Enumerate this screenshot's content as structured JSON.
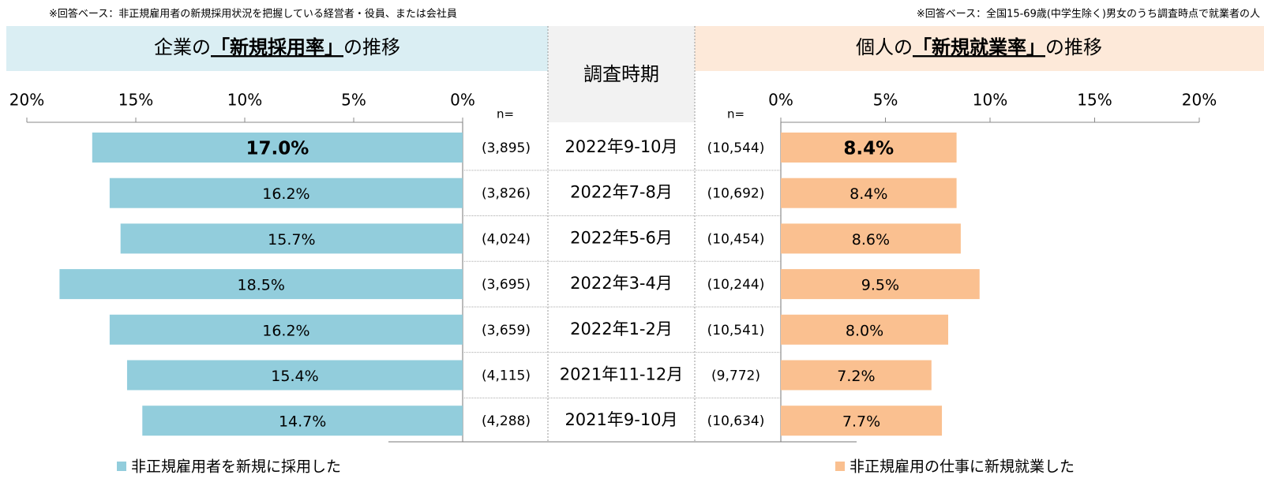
{
  "chart_data": {
    "type": "butterfly",
    "left_note": "※回答ベース：非正規雇用者の新規採用状況を把握している経営者・役員、または会社員",
    "right_note": "※回答ベース：全国15-69歳(中学生除く)男女のうち調査時点で就業者の人",
    "left_title": [
      "企業の",
      "「新規採用率」",
      "の推移"
    ],
    "right_title": [
      "個人の",
      "「新規就業率」",
      "の推移"
    ],
    "center_header": "調査時期",
    "n_label": "n=",
    "categories": [
      "2022年9-10月",
      "2022年7-8月",
      "2022年5-6月",
      "2022年3-4月",
      "2022年1-2月",
      "2021年11-12月",
      "2021年9-10月"
    ],
    "highlight_index": 0,
    "series": [
      {
        "name": "非正規雇用者を新規に採用した",
        "color": "#92cddc",
        "values": [
          17.0,
          16.2,
          15.7,
          18.5,
          16.2,
          15.4,
          14.7
        ],
        "value_labels": [
          "17.0%",
          "16.2%",
          "15.7%",
          "18.5%",
          "16.2%",
          "15.4%",
          "14.7%"
        ],
        "n": [
          "(3,895)",
          "(3,826)",
          "(4,024)",
          "(3,695)",
          "(3,659)",
          "(4,115)",
          "(4,288)"
        ]
      },
      {
        "name": "非正規雇用の仕事に新規就業した",
        "color": "#fac090",
        "values": [
          8.4,
          8.4,
          8.6,
          9.5,
          8.0,
          7.2,
          7.7
        ],
        "value_labels": [
          "8.4%",
          "8.4%",
          "8.6%",
          "9.5%",
          "8.0%",
          "7.2%",
          "7.7%"
        ],
        "n": [
          "(10,544)",
          "(10,692)",
          "(10,454)",
          "(10,244)",
          "(10,541)",
          "(9,772)",
          "(10,634)"
        ]
      }
    ],
    "xlim": [
      0,
      20
    ],
    "xticks": [
      {
        "value": 0,
        "label": "0%"
      },
      {
        "value": 5,
        "label": "5%"
      },
      {
        "value": 10,
        "label": "10%"
      },
      {
        "value": 15,
        "label": "15%"
      },
      {
        "value": 20,
        "label": "20%"
      }
    ]
  }
}
